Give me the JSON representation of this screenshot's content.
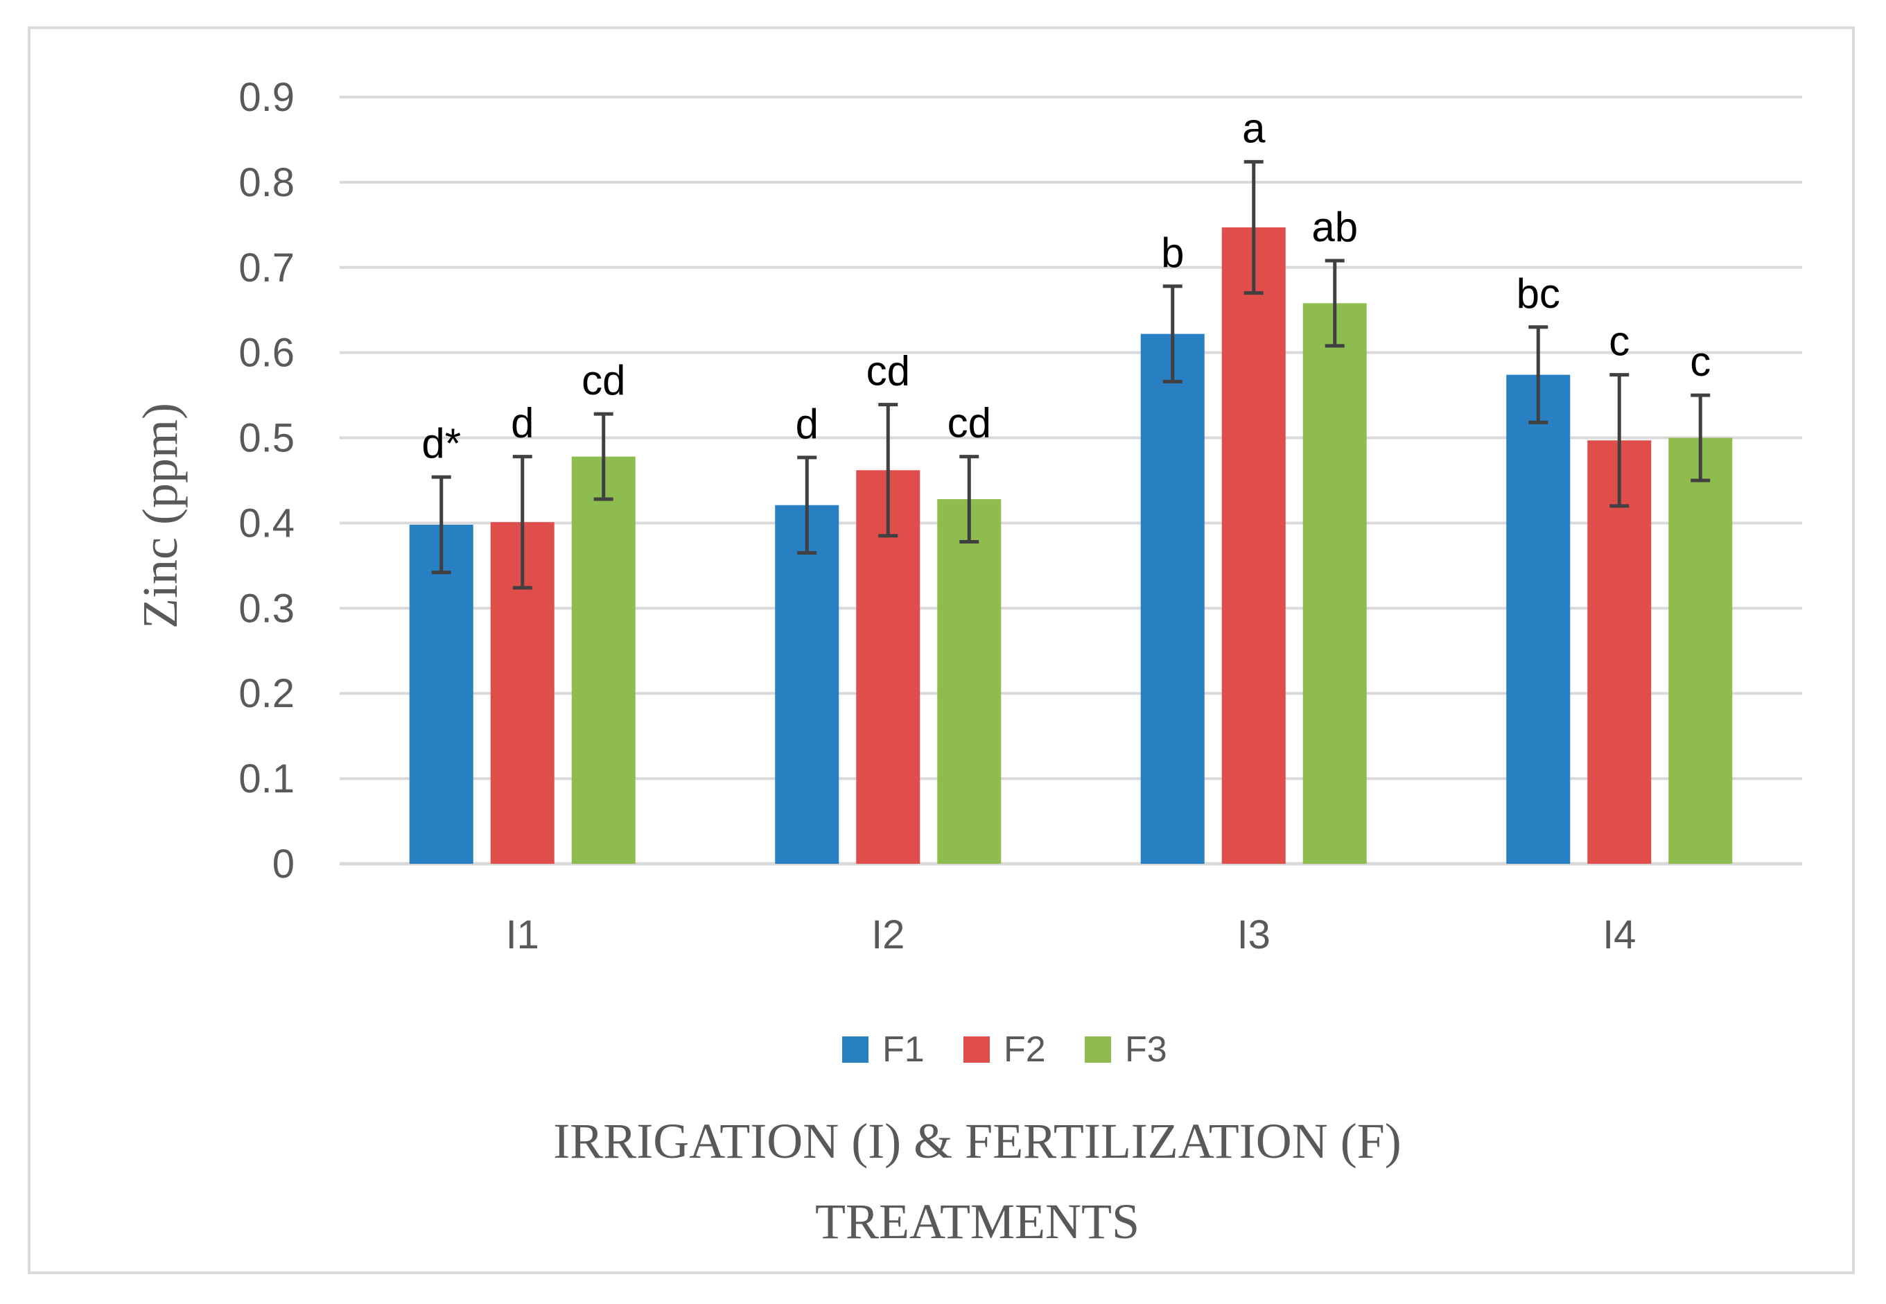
{
  "chart_data": {
    "type": "bar",
    "title": "",
    "xlabel_lines": [
      "IRRIGATION (I) & FERTILIZATION (F)",
      "TREATMENTS"
    ],
    "ylabel": "Zinc (ppm)",
    "ylim": [
      0,
      0.9
    ],
    "yticks": [
      0,
      0.1,
      0.2,
      0.3,
      0.4,
      0.5,
      0.6,
      0.7,
      0.8,
      0.9
    ],
    "ytick_labels": [
      "0",
      "0.1",
      "0.2",
      "0.3",
      "0.4",
      "0.5",
      "0.6",
      "0.7",
      "0.8",
      "0.9"
    ],
    "grid": true,
    "legend_position": "bottom",
    "categories": [
      "I1",
      "I2",
      "I3",
      "I4"
    ],
    "series": [
      {
        "name": "F1",
        "color": "#2880c2",
        "values": [
          0.398,
          0.421,
          0.622,
          0.574
        ],
        "errors": [
          0.056,
          0.056,
          0.056,
          0.056
        ],
        "letters": [
          "d*",
          "d",
          "b",
          "bc"
        ]
      },
      {
        "name": "F2",
        "color": "#e04e4c",
        "values": [
          0.401,
          0.462,
          0.747,
          0.497
        ],
        "errors": [
          0.077,
          0.077,
          0.077,
          0.077
        ],
        "letters": [
          "d",
          "cd",
          "a",
          "c"
        ]
      },
      {
        "name": "F3",
        "color": "#8fbc4e",
        "values": [
          0.478,
          0.428,
          0.658,
          0.5
        ],
        "errors": [
          0.05,
          0.05,
          0.05,
          0.05
        ],
        "letters": [
          "cd",
          "cd",
          "ab",
          "c"
        ]
      }
    ]
  }
}
